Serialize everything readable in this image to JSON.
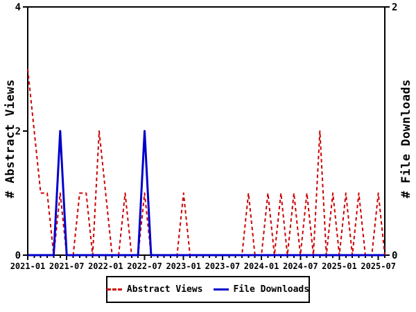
{
  "chart_data": {
    "type": "line",
    "months": [
      "2021-01",
      "2021-02",
      "2021-03",
      "2021-04",
      "2021-05",
      "2021-06",
      "2021-07",
      "2021-08",
      "2021-09",
      "2021-10",
      "2021-11",
      "2021-12",
      "2022-01",
      "2022-02",
      "2022-03",
      "2022-04",
      "2022-05",
      "2022-06",
      "2022-07",
      "2022-08",
      "2022-09",
      "2022-10",
      "2022-11",
      "2022-12",
      "2023-01",
      "2023-02",
      "2023-03",
      "2023-04",
      "2023-05",
      "2023-06",
      "2023-07",
      "2023-08",
      "2023-09",
      "2023-10",
      "2023-11",
      "2023-12",
      "2024-01",
      "2024-02",
      "2024-03",
      "2024-04",
      "2024-05",
      "2024-06",
      "2024-07",
      "2024-08",
      "2024-09",
      "2024-10",
      "2024-11",
      "2024-12",
      "2025-01",
      "2025-02",
      "2025-03",
      "2025-04",
      "2025-05",
      "2025-06",
      "2025-07",
      "2025-08"
    ],
    "series": [
      {
        "name": "Abstract Views",
        "axis": "left",
        "color": "#cc0000",
        "line_style": "dashed",
        "values": [
          3,
          2,
          1,
          1,
          0,
          1,
          0,
          0,
          1,
          1,
          0,
          2,
          1,
          0,
          0,
          1,
          0,
          0,
          1,
          0,
          0,
          0,
          0,
          0,
          1,
          0,
          0,
          0,
          0,
          0,
          0,
          0,
          0,
          0,
          1,
          0,
          0,
          1,
          0,
          1,
          0,
          1,
          0,
          1,
          0,
          2,
          0,
          1,
          0,
          1,
          0,
          1,
          0,
          0,
          1,
          0
        ]
      },
      {
        "name": "File Downloads",
        "axis": "right",
        "color": "#0000cc",
        "line_style": "solid",
        "values": [
          0,
          0,
          0,
          0,
          0,
          1,
          0,
          0,
          0,
          0,
          0,
          0,
          0,
          0,
          0,
          0,
          0,
          0,
          1,
          0,
          0,
          0,
          0,
          0,
          0,
          0,
          0,
          0,
          0,
          0,
          0,
          0,
          0,
          0,
          0,
          0,
          0,
          0,
          0,
          0,
          0,
          0,
          0,
          0,
          0,
          0,
          0,
          0,
          0,
          0,
          0,
          0,
          0,
          0,
          0,
          0
        ]
      }
    ],
    "left_axis": {
      "label": "# Abstract Views",
      "range": [
        0,
        4
      ],
      "ticks": [
        0,
        2,
        4
      ]
    },
    "right_axis": {
      "label": "# File Downloads",
      "range": [
        0,
        2
      ],
      "ticks": [
        0,
        2
      ]
    },
    "x_axis": {
      "tick_label_every": 6,
      "tick_labels": [
        "2021-01",
        "2021-07",
        "2022-01",
        "2022-07",
        "2023-01",
        "2023-07",
        "2024-01",
        "2024-07",
        "2025-01",
        "2025-07"
      ]
    },
    "legend": {
      "position": "bottom-center",
      "entries": [
        "Abstract Views",
        "File Downloads"
      ]
    },
    "grid": false
  },
  "colors": {
    "axis": "#000000",
    "background": "#ffffff",
    "abstract_views": "#cc0000",
    "file_downloads": "#0000cc"
  }
}
